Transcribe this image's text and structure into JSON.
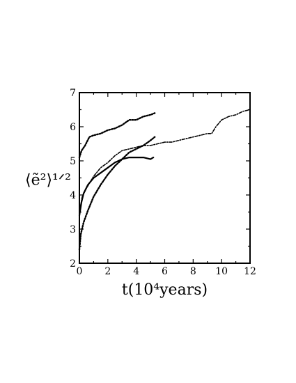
{
  "chart_data": {
    "type": "line",
    "title": "",
    "xlabel": "t(10⁴years)",
    "ylabel": "⟨ẽ²⟩¹ᐟ²",
    "xlim": [
      0,
      12
    ],
    "ylim": [
      2,
      7
    ],
    "xticks": [
      0,
      2,
      4,
      6,
      8,
      10,
      12
    ],
    "yticks": [
      2,
      3,
      4,
      5,
      6,
      7
    ],
    "grid": false,
    "legend": "none",
    "series": [
      {
        "style": "dotted",
        "x": [
          0,
          0.15,
          0.4,
          0.7,
          1.0,
          1.5,
          2.0,
          2.5,
          3.0,
          3.5,
          4.0,
          4.5,
          5.0,
          5.3
        ],
        "y": [
          5.1,
          5.3,
          5.45,
          5.7,
          5.75,
          5.8,
          5.9,
          5.95,
          6.05,
          6.2,
          6.2,
          6.3,
          6.35,
          6.4
        ]
      },
      {
        "style": "dashdot",
        "x": [
          0,
          0.2,
          0.5,
          1.0,
          1.5,
          2.0,
          2.5,
          3.0,
          3.5,
          4.0,
          4.5,
          5.0,
          5.5,
          6.0,
          6.5,
          7.0,
          7.5,
          8.0,
          8.5,
          9.0,
          9.3,
          9.6,
          10.0,
          10.5,
          11.0,
          11.5,
          12.0
        ],
        "y": [
          3.5,
          3.95,
          4.2,
          4.55,
          4.8,
          4.95,
          5.15,
          5.3,
          5.35,
          5.4,
          5.45,
          5.45,
          5.5,
          5.55,
          5.55,
          5.6,
          5.65,
          5.7,
          5.75,
          5.8,
          5.8,
          6.0,
          6.2,
          6.3,
          6.35,
          6.45,
          6.5
        ]
      },
      {
        "style": "solid",
        "x": [
          0,
          0.15,
          0.3,
          0.6,
          1.0,
          1.5,
          2.0,
          2.5,
          3.0,
          3.5,
          4.0,
          4.5,
          5.0,
          5.2
        ],
        "y": [
          3.4,
          3.8,
          4.05,
          4.3,
          4.5,
          4.65,
          4.8,
          4.95,
          5.05,
          5.1,
          5.1,
          5.1,
          5.05,
          5.1
        ]
      },
      {
        "style": "dotted",
        "x": [
          0,
          0.1,
          0.3,
          0.6,
          1.0,
          1.5,
          2.0,
          2.5,
          3.0,
          3.5,
          4.0,
          4.5,
          5.0,
          5.3
        ],
        "y": [
          2.4,
          2.85,
          3.2,
          3.55,
          3.95,
          4.3,
          4.6,
          4.85,
          5.05,
          5.25,
          5.35,
          5.45,
          5.6,
          5.7
        ]
      }
    ]
  }
}
